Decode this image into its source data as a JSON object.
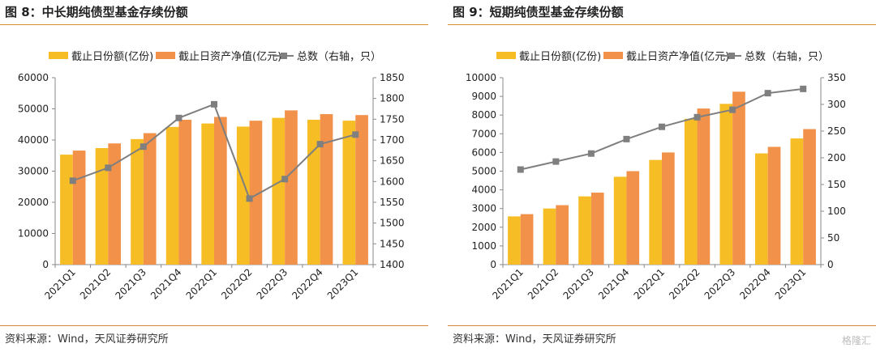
{
  "colors": {
    "shares": "#F6BD25",
    "nav": "#F2924A",
    "count": "#7F7F7F",
    "rule": "#D98B3A"
  },
  "left": {
    "title": "图 8：中长期纯债型基金存续份额",
    "source": "资料来源：Wind，天风证券研究所"
  },
  "right": {
    "title": "图 9：短期纯债型基金存续份额",
    "source": "资料来源：Wind，天风证券研究所",
    "watermark": "格隆汇"
  },
  "chart_data": [
    {
      "type": "bar+line",
      "categories": [
        "2021Q1",
        "2021Q2",
        "2021Q3",
        "2021Q4",
        "2022Q1",
        "2022Q2",
        "2022Q3",
        "2022Q4",
        "2023Q1"
      ],
      "series": [
        {
          "name": "截止日份额(亿份)",
          "type": "bar",
          "axis": "left",
          "values": [
            35300,
            37400,
            40300,
            44200,
            45300,
            44300,
            47100,
            46500,
            46200
          ]
        },
        {
          "name": "截止日资产净值(亿元)",
          "type": "bar",
          "axis": "left",
          "values": [
            36600,
            38900,
            42200,
            46500,
            47400,
            46200,
            49500,
            48300,
            48000
          ]
        },
        {
          "name": "总数（右轴，只）",
          "type": "line",
          "axis": "right",
          "values": [
            1602,
            1633,
            1684,
            1753,
            1786,
            1559,
            1606,
            1690,
            1713
          ]
        }
      ],
      "y_left": {
        "min": 0,
        "max": 60000,
        "ticks": [
          0,
          10000,
          20000,
          30000,
          40000,
          50000,
          60000
        ]
      },
      "y_right": {
        "min": 1400,
        "max": 1850,
        "ticks": [
          1400,
          1450,
          1500,
          1550,
          1600,
          1650,
          1700,
          1750,
          1800,
          1850
        ]
      },
      "legend_position": "top",
      "grid": false
    },
    {
      "type": "bar+line",
      "categories": [
        "2021Q1",
        "2021Q2",
        "2021Q3",
        "2021Q4",
        "2022Q1",
        "2022Q2",
        "2022Q3",
        "2022Q4",
        "2023Q1"
      ],
      "series": [
        {
          "name": "截止日份额(亿份)",
          "type": "bar",
          "axis": "left",
          "values": [
            2580,
            3000,
            3650,
            4700,
            5600,
            7800,
            8600,
            5950,
            6750
          ]
        },
        {
          "name": "截止日资产净值(亿元)",
          "type": "bar",
          "axis": "left",
          "values": [
            2700,
            3180,
            3850,
            5000,
            6000,
            8350,
            9250,
            6300,
            7250
          ]
        },
        {
          "name": "总数（右轴，只）",
          "type": "line",
          "axis": "right",
          "values": [
            178,
            193,
            208,
            235,
            258,
            276,
            290,
            321,
            329
          ]
        }
      ],
      "y_left": {
        "min": 0,
        "max": 10000,
        "ticks": [
          0,
          1000,
          2000,
          3000,
          4000,
          5000,
          6000,
          7000,
          8000,
          9000,
          10000
        ]
      },
      "y_right": {
        "min": 0,
        "max": 350,
        "ticks": [
          0,
          50,
          100,
          150,
          200,
          250,
          300,
          350
        ]
      },
      "legend_position": "top",
      "grid": false
    }
  ]
}
